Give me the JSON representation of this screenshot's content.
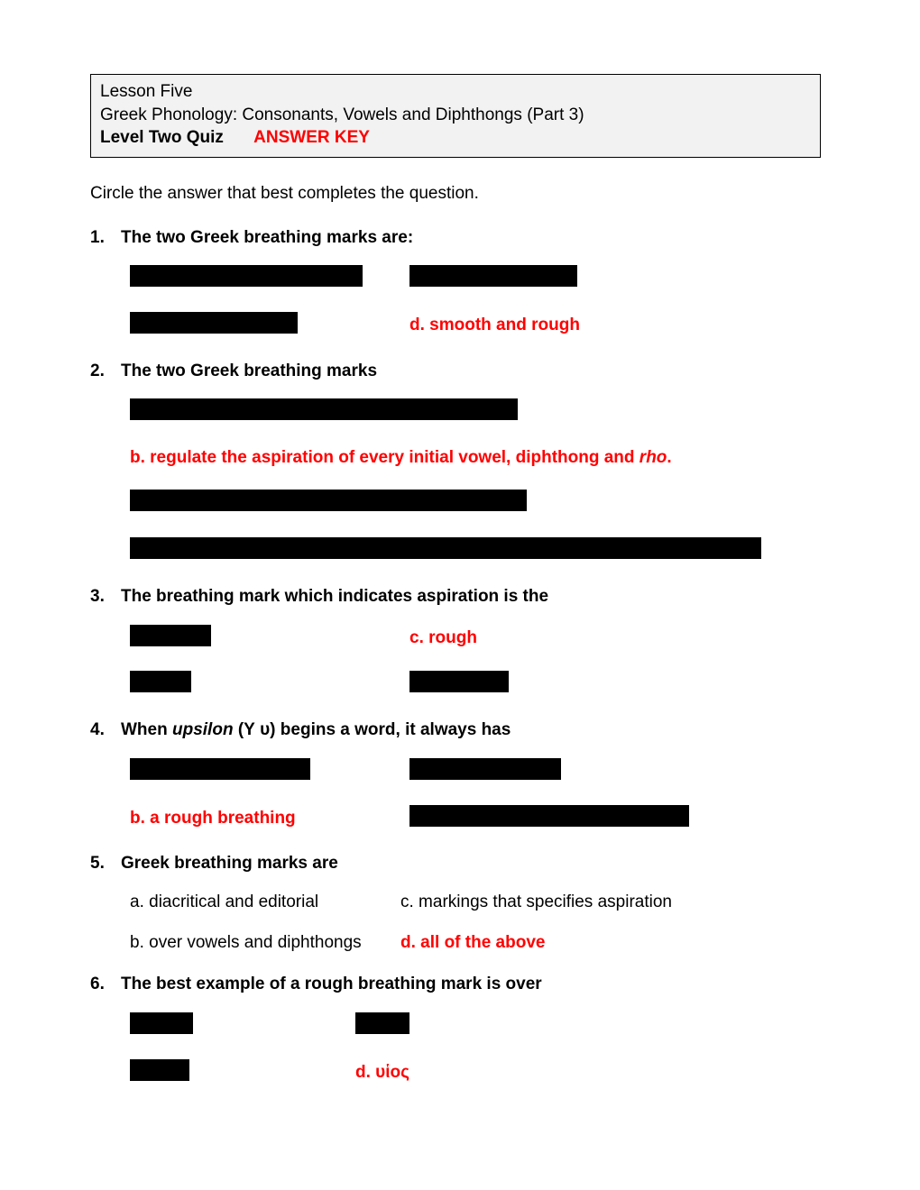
{
  "header": {
    "line1": "Lesson Five",
    "line2": "Greek Phonology: Consonants, Vowels and Diphthongs (Part 3)",
    "level": "Level Two Quiz",
    "key": "ANSWER KEY"
  },
  "instructions": "Circle the answer that best completes the question.",
  "colors": {
    "answer": "#ff0000",
    "redact": "#000000",
    "headerBg": "#f2f2f2"
  },
  "q1": {
    "num": "1.",
    "prompt": "The two Greek breathing marks are:",
    "bar_a_w": 258,
    "bar_c_w": 186,
    "bar_b_w": 186,
    "d": "d.  smooth and rough"
  },
  "q2": {
    "num": "2.",
    "prompt": "The two Greek breathing marks",
    "bar_a_w": 430,
    "b_pre": "b.  regulate the aspiration of every initial vowel, diphthong and ",
    "b_ital": "rho",
    "b_post": ".",
    "bar_c_w": 440,
    "bar_d_w": 700
  },
  "q3": {
    "num": "3.",
    "prompt": "The breathing mark which indicates aspiration is the",
    "bar_a_w": 90,
    "c": "c.  rough",
    "bar_b_w": 68,
    "bar_d_w": 110
  },
  "q4": {
    "num": "4.",
    "prompt_pre": "When ",
    "prompt_ital": "upsilon",
    "prompt_post": " (Υ υ) begins a word, it always has",
    "bar_a_w": 200,
    "bar_c_w": 168,
    "b": "b.  a rough breathing",
    "bar_d_w": 310
  },
  "q5": {
    "num": "5.",
    "prompt": "Greek breathing marks are",
    "a": "a.  diacritical and editorial",
    "c": "c.  markings that specifies aspiration",
    "b": "b.  over vowels and diphthongs",
    "d": "d.  all of the above"
  },
  "q6": {
    "num": "6.",
    "prompt": "The best example of a rough breathing mark is over",
    "bar_a_w": 70,
    "bar_c_w": 60,
    "bar_b_w": 66,
    "d": "d.  υἱος"
  }
}
